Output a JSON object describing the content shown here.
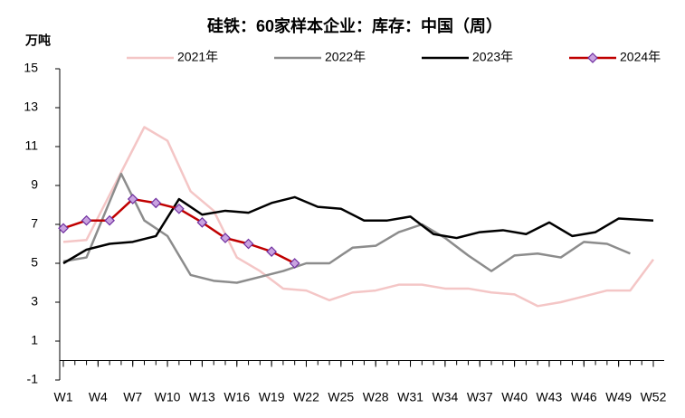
{
  "chart_data": {
    "type": "line",
    "title": "硅铁：60家样本企业：库存：中国（周）",
    "y_label": "万吨",
    "xlim": [
      1,
      52
    ],
    "xticks": [
      {
        "value": 1,
        "label": "W1"
      },
      {
        "value": 4,
        "label": "W4"
      },
      {
        "value": 7,
        "label": "W7"
      },
      {
        "value": 10,
        "label": "W10"
      },
      {
        "value": 13,
        "label": "W13"
      },
      {
        "value": 16,
        "label": "W16"
      },
      {
        "value": 19,
        "label": "W19"
      },
      {
        "value": 22,
        "label": "W22"
      },
      {
        "value": 25,
        "label": "W25"
      },
      {
        "value": 28,
        "label": "W28"
      },
      {
        "value": 31,
        "label": "W31"
      },
      {
        "value": 34,
        "label": "W34"
      },
      {
        "value": 37,
        "label": "W37"
      },
      {
        "value": 40,
        "label": "W40"
      },
      {
        "value": 43,
        "label": "W43"
      },
      {
        "value": 46,
        "label": "W46"
      },
      {
        "value": 49,
        "label": "W49"
      },
      {
        "value": 52,
        "label": "W52"
      }
    ],
    "ylim": [
      -1,
      15
    ],
    "yticks": [
      -1,
      1,
      3,
      5,
      7,
      9,
      11,
      13,
      15
    ],
    "legend": "top",
    "series": [
      {
        "name": "2021年",
        "color": "#f4c6c6",
        "x": [
          1,
          3,
          8,
          10,
          12,
          14,
          16,
          18,
          20,
          22,
          24,
          26,
          28,
          30,
          32,
          34,
          36,
          38,
          40,
          42,
          44,
          46,
          48,
          50,
          52
        ],
        "values": [
          6.1,
          6.2,
          12.0,
          11.3,
          8.7,
          7.7,
          5.3,
          4.6,
          3.7,
          3.6,
          3.1,
          3.5,
          3.6,
          3.9,
          3.9,
          3.7,
          3.7,
          3.5,
          3.4,
          2.8,
          3.0,
          3.3,
          3.6,
          3.6,
          5.2
        ]
      },
      {
        "name": "2022年",
        "color": "#8c8c8c",
        "x": [
          1,
          3,
          6,
          8,
          10,
          12,
          14,
          16,
          18,
          20,
          22,
          24,
          26,
          28,
          30,
          32,
          34,
          36,
          38,
          40,
          42,
          44,
          46,
          48,
          50
        ],
        "values": [
          5.1,
          5.3,
          9.6,
          7.2,
          6.4,
          4.4,
          4.1,
          4.0,
          4.3,
          4.6,
          5.0,
          5.0,
          5.8,
          5.9,
          6.6,
          7.0,
          6.3,
          5.4,
          4.6,
          5.4,
          5.5,
          5.3,
          6.1,
          6.0,
          5.5
        ]
      },
      {
        "name": "2023年",
        "color": "#000000",
        "x": [
          1,
          3,
          5,
          7,
          9,
          11,
          13,
          15,
          17,
          19,
          21,
          23,
          25,
          27,
          29,
          31,
          33,
          35,
          37,
          39,
          41,
          43,
          45,
          47,
          49,
          52
        ],
        "values": [
          5.0,
          5.7,
          6.0,
          6.1,
          6.4,
          8.3,
          7.5,
          7.7,
          7.6,
          8.1,
          8.4,
          7.9,
          7.8,
          7.2,
          7.2,
          7.4,
          6.5,
          6.3,
          6.6,
          6.7,
          6.5,
          7.1,
          6.4,
          6.6,
          7.3,
          7.2
        ]
      },
      {
        "name": "2024年",
        "color": "#c00000",
        "marker": "diamond",
        "marker_color": "#c9a3e0",
        "x": [
          1,
          3,
          5,
          7,
          9,
          11,
          13,
          15,
          17,
          19,
          21
        ],
        "values": [
          6.8,
          7.2,
          7.2,
          8.3,
          8.1,
          7.8,
          7.1,
          6.3,
          6.0,
          5.6,
          5.0
        ]
      }
    ]
  }
}
